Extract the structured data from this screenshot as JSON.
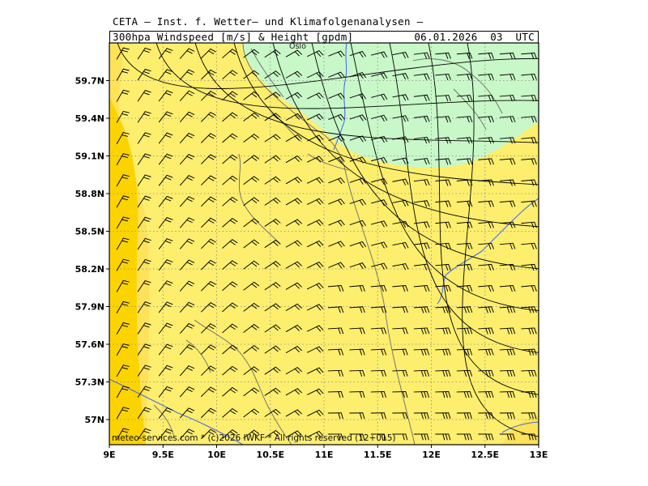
{
  "header": {
    "organization": "CETA — Inst. f. Wetter— und Klimafolgenanalysen —",
    "title": "300hpa_Windspeed_[m/s]_&_Height_[gpdm]",
    "datetime": "06.01.2026  03  UTC"
  },
  "map": {
    "lon_range": [
      9,
      13
    ],
    "lat_range": [
      56.8,
      60.0
    ],
    "x_ticks": [
      "9E",
      "9.5E",
      "10E",
      "10.5E",
      "11E",
      "11.5E",
      "12E",
      "12.5E",
      "13E"
    ],
    "y_ticks": [
      "57N",
      "57.3N",
      "57.6N",
      "57.9N",
      "58.2N",
      "58.5N",
      "58.8N",
      "59.1N",
      "59.4N",
      "59.7N"
    ],
    "city_label": "Oslo",
    "credit": "meteo-services.com  *  (c)2026 IWKF  *  All rights reserved  (12+015)",
    "fill_colors": {
      "light_green": "#c8f8c8",
      "light_yellow": "#fdee6e",
      "yellow": "#fde25a",
      "gold": "#fbd400"
    },
    "grid_style": "dotted",
    "coastline_color": "#6a6a6a",
    "border_color": "#4a6ee0",
    "contour_color": "#000000",
    "wind_barb_color": "#000000"
  }
}
